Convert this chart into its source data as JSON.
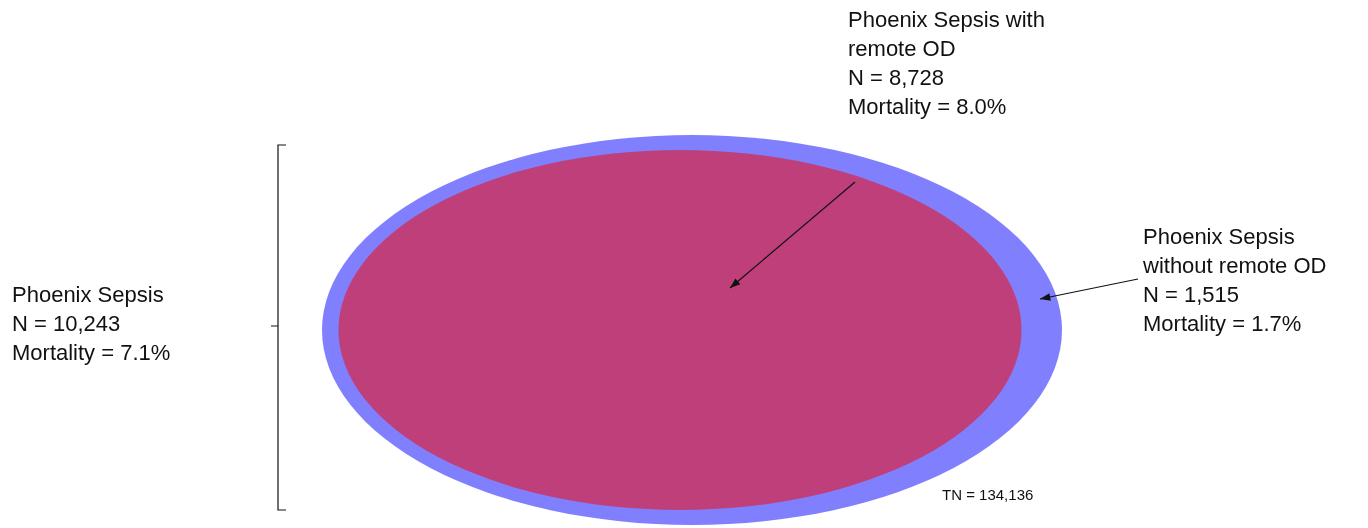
{
  "chart_data": {
    "type": "other",
    "categories": [
      "Phoenix Sepsis with remote OD",
      "Phoenix Sepsis without remote OD"
    ],
    "values": [
      8728,
      1515
    ],
    "value_labels": [
      "N = 8,728",
      "N = 1,515"
    ],
    "colors": [
      "#bf3f7b",
      "#8080ff"
    ],
    "annotations": [
      "Mortality = 8.0%",
      "Mortality = 1.7%",
      "Phoenix Sepsis",
      "N = 10,243",
      "Mortality = 7.1%",
      "TN = 134,136"
    ]
  }
}
